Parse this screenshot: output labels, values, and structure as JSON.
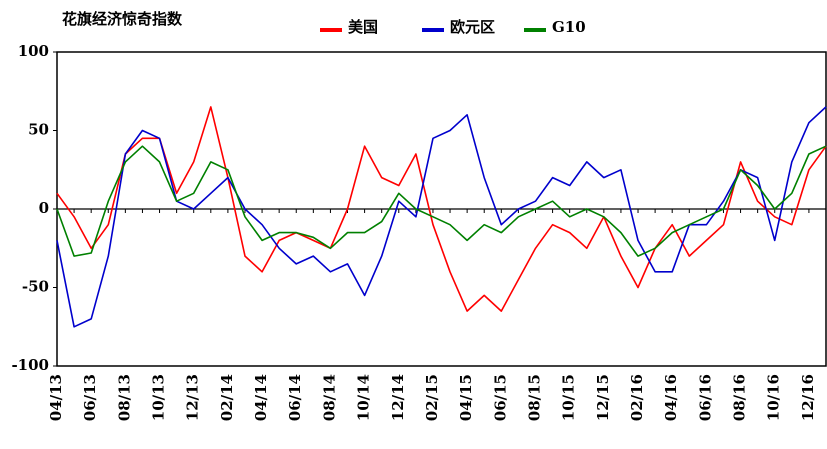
{
  "chart_data": {
    "type": "line",
    "title": "花旗经济惊奇指数",
    "categories": [
      "04/13",
      null,
      "06/13",
      null,
      "08/13",
      null,
      "10/13",
      null,
      "12/13",
      null,
      "02/14",
      null,
      "04/14",
      null,
      "06/14",
      null,
      "08/14",
      null,
      "10/14",
      null,
      "12/14",
      null,
      "02/15",
      null,
      "04/15",
      null,
      "06/15",
      null,
      "08/15",
      null,
      "10/15",
      null,
      "12/15",
      null,
      "02/16",
      null,
      "04/16",
      null,
      "06/16",
      null,
      "08/16",
      null,
      "10/16",
      null,
      "12/16",
      null
    ],
    "series": [
      {
        "name": "美国",
        "color": "#ff0000",
        "values": [
          10,
          -5,
          -25,
          -10,
          35,
          45,
          45,
          10,
          30,
          65,
          20,
          -30,
          -40,
          -20,
          -15,
          -20,
          -25,
          0,
          40,
          20,
          15,
          35,
          -10,
          -40,
          -65,
          -55,
          -65,
          -45,
          -25,
          -10,
          -15,
          -25,
          -5,
          -30,
          -50,
          -25,
          -10,
          -30,
          -20,
          -10,
          30,
          5,
          -5,
          -10,
          25,
          40
        ]
      },
      {
        "name": "欧元区",
        "color": "#0000cc",
        "values": [
          -20,
          -75,
          -70,
          -30,
          35,
          50,
          45,
          5,
          0,
          10,
          20,
          0,
          -10,
          -25,
          -35,
          -30,
          -40,
          -35,
          -55,
          -30,
          5,
          -5,
          45,
          50,
          60,
          20,
          -10,
          0,
          5,
          20,
          15,
          30,
          20,
          25,
          -20,
          -40,
          -40,
          -10,
          -10,
          5,
          25,
          20,
          -20,
          30,
          55,
          65
        ]
      },
      {
        "name": "G10",
        "color": "#008000",
        "values": [
          0,
          -30,
          -28,
          5,
          30,
          40,
          30,
          5,
          10,
          30,
          25,
          -5,
          -20,
          -15,
          -15,
          -18,
          -25,
          -15,
          -15,
          -8,
          10,
          0,
          -5,
          -10,
          -20,
          -10,
          -15,
          -5,
          0,
          5,
          -5,
          0,
          -5,
          -15,
          -30,
          -25,
          -15,
          -10,
          -5,
          0,
          25,
          15,
          0,
          10,
          35,
          40
        ]
      }
    ],
    "ylim": [
      -100,
      100
    ],
    "yticks": [
      -100,
      -50,
      0,
      50,
      100
    ]
  }
}
